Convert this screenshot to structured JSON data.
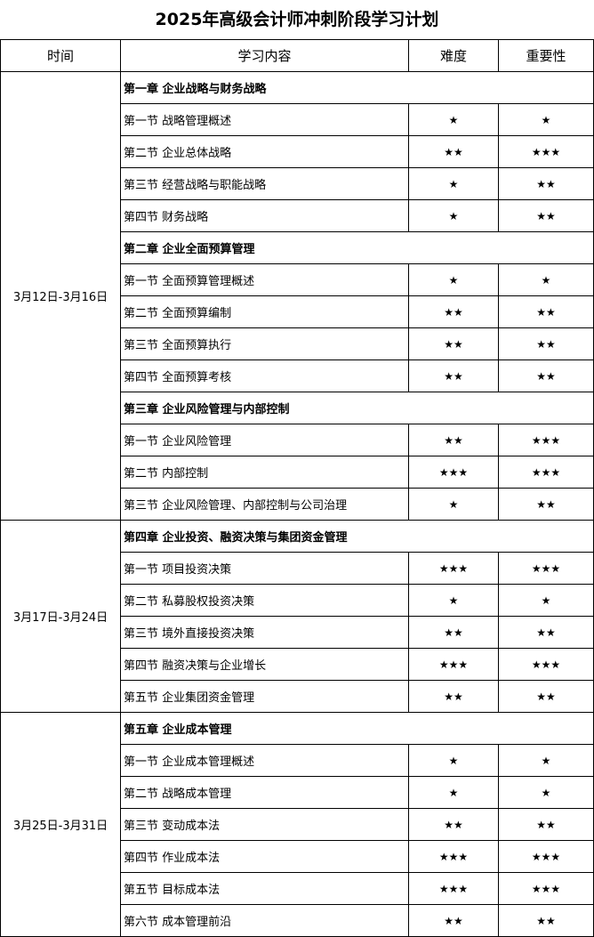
{
  "title": "2025年高级会计师冲刺阶段学习计划",
  "headers": [
    "时间",
    "学习内容",
    "难度",
    "重要性"
  ],
  "groups": [
    {
      "time": "3月12日-3月16日",
      "rows": [
        {
          "chapter": "第一章  企业战略与财务战略"
        },
        {
          "section": "第一节  战略管理概述",
          "difficulty": "★",
          "importance": "★"
        },
        {
          "section": "第二节  企业总体战略",
          "difficulty": "★★",
          "importance": "★★★"
        },
        {
          "section": "第三节  经营战略与职能战略",
          "difficulty": "★",
          "importance": "★★"
        },
        {
          "section": "第四节  财务战略",
          "difficulty": "★",
          "importance": "★★"
        },
        {
          "chapter": "第二章  企业全面预算管理"
        },
        {
          "section": "第一节  全面预算管理概述",
          "difficulty": "★",
          "importance": "★"
        },
        {
          "section": "第二节  全面预算编制",
          "difficulty": "★★",
          "importance": "★★"
        },
        {
          "section": "第三节  全面预算执行",
          "difficulty": "★★",
          "importance": "★★"
        },
        {
          "section": "第四节  全面预算考核",
          "difficulty": "★★",
          "importance": "★★"
        },
        {
          "chapter": "第三章  企业风险管理与内部控制"
        },
        {
          "section": "第一节  企业风险管理",
          "difficulty": "★★",
          "importance": "★★★"
        },
        {
          "section": "第二节  内部控制",
          "difficulty": "★★★",
          "importance": "★★★"
        },
        {
          "section": "第三节  企业风险管理、内部控制与公司治理",
          "difficulty": "★",
          "importance": "★★"
        }
      ]
    },
    {
      "time": "3月17日-3月24日",
      "rows": [
        {
          "chapter": "第四章  企业投资、融资决策与集团资金管理"
        },
        {
          "section": "第一节  项目投资决策",
          "difficulty": "★★★",
          "importance": "★★★"
        },
        {
          "section": "第二节  私募股权投资决策",
          "difficulty": "★",
          "importance": "★"
        },
        {
          "section": "第三节  境外直接投资决策",
          "difficulty": "★★",
          "importance": "★★"
        },
        {
          "section": "第四节  融资决策与企业增长",
          "difficulty": "★★★",
          "importance": "★★★"
        },
        {
          "section": "第五节  企业集团资金管理",
          "difficulty": "★★",
          "importance": "★★"
        }
      ]
    },
    {
      "time": "3月25日-3月31日",
      "rows": [
        {
          "chapter": "第五章  企业成本管理"
        },
        {
          "section": "第一节  企业成本管理概述",
          "difficulty": "★",
          "importance": "★"
        },
        {
          "section": "第二节  战略成本管理",
          "difficulty": "★",
          "importance": "★"
        },
        {
          "section": "第三节  变动成本法",
          "difficulty": "★★",
          "importance": "★★"
        },
        {
          "section": "第四节  作业成本法",
          "difficulty": "★★★",
          "importance": "★★★"
        },
        {
          "section": "第五节  目标成本法",
          "difficulty": "★★★",
          "importance": "★★★"
        },
        {
          "section": "第六节  成本管理前沿",
          "difficulty": "★★",
          "importance": "★★"
        }
      ]
    }
  ]
}
